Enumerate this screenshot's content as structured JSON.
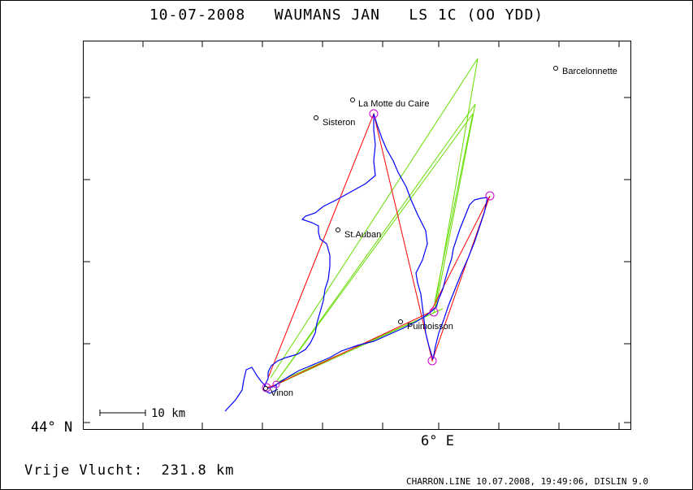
{
  "header": {
    "title": "10-07-2008   WAUMANS JAN   LS 1C (OO YDD)"
  },
  "axes": {
    "lat_label": "44° N",
    "lon_label": "6° E"
  },
  "scale_bar": {
    "label": "10 km"
  },
  "places": [
    {
      "name": "Barcelonnette"
    },
    {
      "name": "La Motte du Caire"
    },
    {
      "name": "Sisteron"
    },
    {
      "name": "St.Auban"
    },
    {
      "name": "Puimoisson"
    },
    {
      "name": "Vinon"
    }
  ],
  "summary": {
    "label": "Vrije Vlucht:",
    "value": "231.8 km"
  },
  "footer": {
    "text": "CHARRON.LINE 10.07.2008, 19:49:06, DISLIN 9.0"
  },
  "colors": {
    "track": "#0000ff",
    "task": "#ff0000",
    "optimized": "#66dd00",
    "turnpoint": "#cc00cc"
  }
}
